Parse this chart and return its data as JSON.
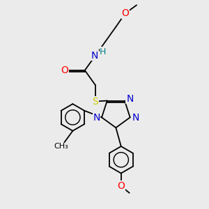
{
  "bg_color": "#ebebeb",
  "atom_colors": {
    "C": "#000000",
    "N": "#0000cc",
    "O": "#ff0000",
    "S": "#cccc00",
    "H": "#008080"
  },
  "bond_color": "#000000",
  "font_size": 9
}
